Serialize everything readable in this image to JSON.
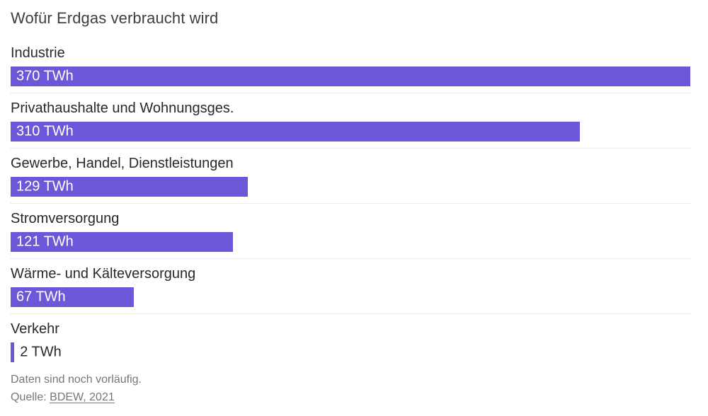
{
  "title": "Wofür Erdgas verbraucht wird",
  "chart_data": {
    "type": "bar",
    "orientation": "horizontal",
    "title": "Wofür Erdgas verbraucht wird",
    "categories": [
      "Industrie",
      "Privathaushalte und Wohnungsges.",
      "Gewerbe, Handel, Dienstleistungen",
      "Stromversorgung",
      "Wärme- und Kälteversorgung",
      "Verkehr"
    ],
    "values": [
      370,
      310,
      129,
      121,
      67,
      2
    ],
    "value_labels": [
      "370 TWh",
      "310 TWh",
      "129 TWh",
      "121 TWh",
      "67 TWh",
      "2 TWh"
    ],
    "unit": "TWh",
    "xlim": [
      0,
      370
    ],
    "bar_color": "#6a58d8",
    "legend": "none",
    "grid": "dotted-row-separators"
  },
  "footer": {
    "note": "Daten sind noch vorläufig.",
    "source_prefix": "Quelle: ",
    "source_link_label": "BDEW, 2021"
  },
  "colors": {
    "background": "#ffffff",
    "bar": "#6a58d8",
    "title_text": "#3e3e3e",
    "label_text": "#282828",
    "value_text_inside": "#ffffff",
    "value_text_outside": "#282828",
    "footer_text": "#767676",
    "separator": "#d9d9d9"
  }
}
